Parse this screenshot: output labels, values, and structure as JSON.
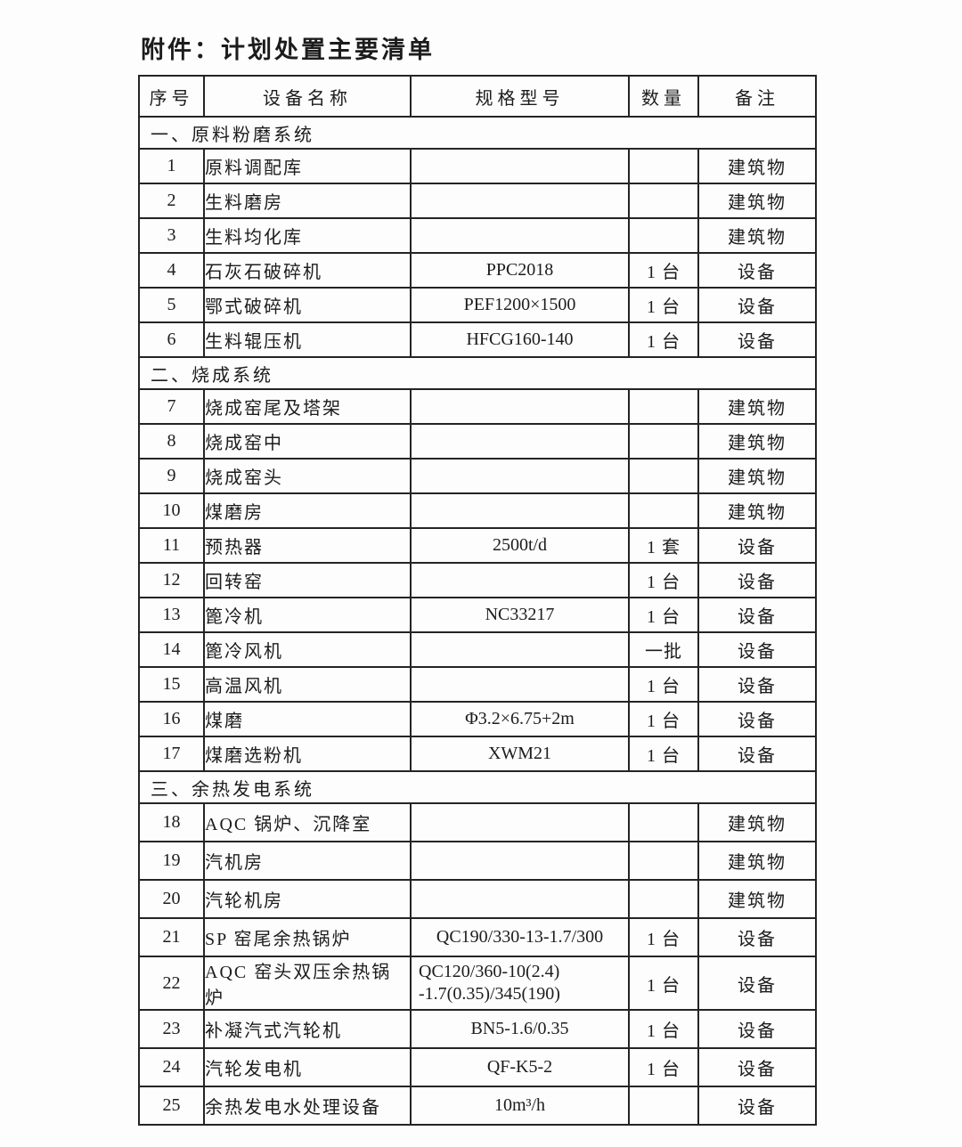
{
  "page": {
    "title": "附件：计划处置主要清单"
  },
  "table": {
    "headers": [
      "序号",
      "设备名称",
      "规格型号",
      "数量",
      "备注"
    ],
    "rows": [
      {
        "type": "section",
        "label": "一、原料粉磨系统"
      },
      {
        "type": "item",
        "no": "1",
        "name": "原料调配库",
        "spec": "",
        "qty": "",
        "note": "建筑物"
      },
      {
        "type": "item",
        "no": "2",
        "name": "生料磨房",
        "spec": "",
        "qty": "",
        "note": "建筑物"
      },
      {
        "type": "item",
        "no": "3",
        "name": "生料均化库",
        "spec": "",
        "qty": "",
        "note": "建筑物"
      },
      {
        "type": "item",
        "no": "4",
        "name": "石灰石破碎机",
        "spec": "PPC2018",
        "qty": "1 台",
        "note": "设备"
      },
      {
        "type": "item",
        "no": "5",
        "name": "鄂式破碎机",
        "spec": "PEF1200×1500",
        "qty": "1 台",
        "note": "设备"
      },
      {
        "type": "item",
        "no": "6",
        "name": "生料辊压机",
        "spec": "HFCG160-140",
        "qty": "1 台",
        "note": "设备"
      },
      {
        "type": "section",
        "label": "二、烧成系统"
      },
      {
        "type": "item",
        "no": "7",
        "name": "烧成窑尾及塔架",
        "spec": "",
        "qty": "",
        "note": "建筑物"
      },
      {
        "type": "item",
        "no": "8",
        "name": "烧成窑中",
        "spec": "",
        "qty": "",
        "note": "建筑物"
      },
      {
        "type": "item",
        "no": "9",
        "name": "烧成窑头",
        "spec": "",
        "qty": "",
        "note": "建筑物"
      },
      {
        "type": "item",
        "no": "10",
        "name": "煤磨房",
        "spec": "",
        "qty": "",
        "note": "建筑物"
      },
      {
        "type": "item",
        "no": "11",
        "name": "预热器",
        "spec": "2500t/d",
        "qty": "1 套",
        "note": "设备"
      },
      {
        "type": "item",
        "no": "12",
        "name": "回转窑",
        "spec": "",
        "qty": "1 台",
        "note": "设备"
      },
      {
        "type": "item",
        "no": "13",
        "name": "篦冷机",
        "spec": "NC33217",
        "qty": "1 台",
        "note": "设备"
      },
      {
        "type": "item",
        "no": "14",
        "name": "篦冷风机",
        "spec": "",
        "qty": "一批",
        "note": "设备"
      },
      {
        "type": "item",
        "no": "15",
        "name": "高温风机",
        "spec": "",
        "qty": "1 台",
        "note": "设备"
      },
      {
        "type": "item",
        "no": "16",
        "name": "煤磨",
        "spec": "Φ3.2×6.75+2m",
        "qty": "1 台",
        "note": "设备"
      },
      {
        "type": "item",
        "no": "17",
        "name": "煤磨选粉机",
        "spec": "XWM21",
        "qty": "1 台",
        "note": "设备"
      },
      {
        "type": "section",
        "label": "三、余热发电系统"
      },
      {
        "type": "item",
        "no": "18",
        "name": "AQC 锅炉、沉降室",
        "spec": "",
        "qty": "",
        "note": "建筑物",
        "tall": true
      },
      {
        "type": "item",
        "no": "19",
        "name": "汽机房",
        "spec": "",
        "qty": "",
        "note": "建筑物",
        "tall": true
      },
      {
        "type": "item",
        "no": "20",
        "name": "汽轮机房",
        "spec": "",
        "qty": "",
        "note": "建筑物",
        "tall": true
      },
      {
        "type": "item",
        "no": "21",
        "name": "SP 窑尾余热锅炉",
        "spec": "QC190/330-13-1.7/300",
        "qty": "1 台",
        "note": "设备",
        "tall": true
      },
      {
        "type": "item",
        "no": "22",
        "name": "AQC 窑头双压余热锅炉",
        "spec": "QC120/360-10(2.4)\n-1.7(0.35)/345(190)",
        "qty": "1 台",
        "note": "设备",
        "tall": true
      },
      {
        "type": "item",
        "no": "23",
        "name": "补凝汽式汽轮机",
        "spec": "BN5-1.6/0.35",
        "qty": "1 台",
        "note": "设备",
        "tall": true
      },
      {
        "type": "item",
        "no": "24",
        "name": "汽轮发电机",
        "spec": "QF-K5-2",
        "qty": "1 台",
        "note": "设备",
        "tall": true
      },
      {
        "type": "item",
        "no": "25",
        "name": "余热发电水处理设备",
        "spec": "10m³/h",
        "qty": "",
        "note": "设备",
        "tall": true
      }
    ]
  }
}
